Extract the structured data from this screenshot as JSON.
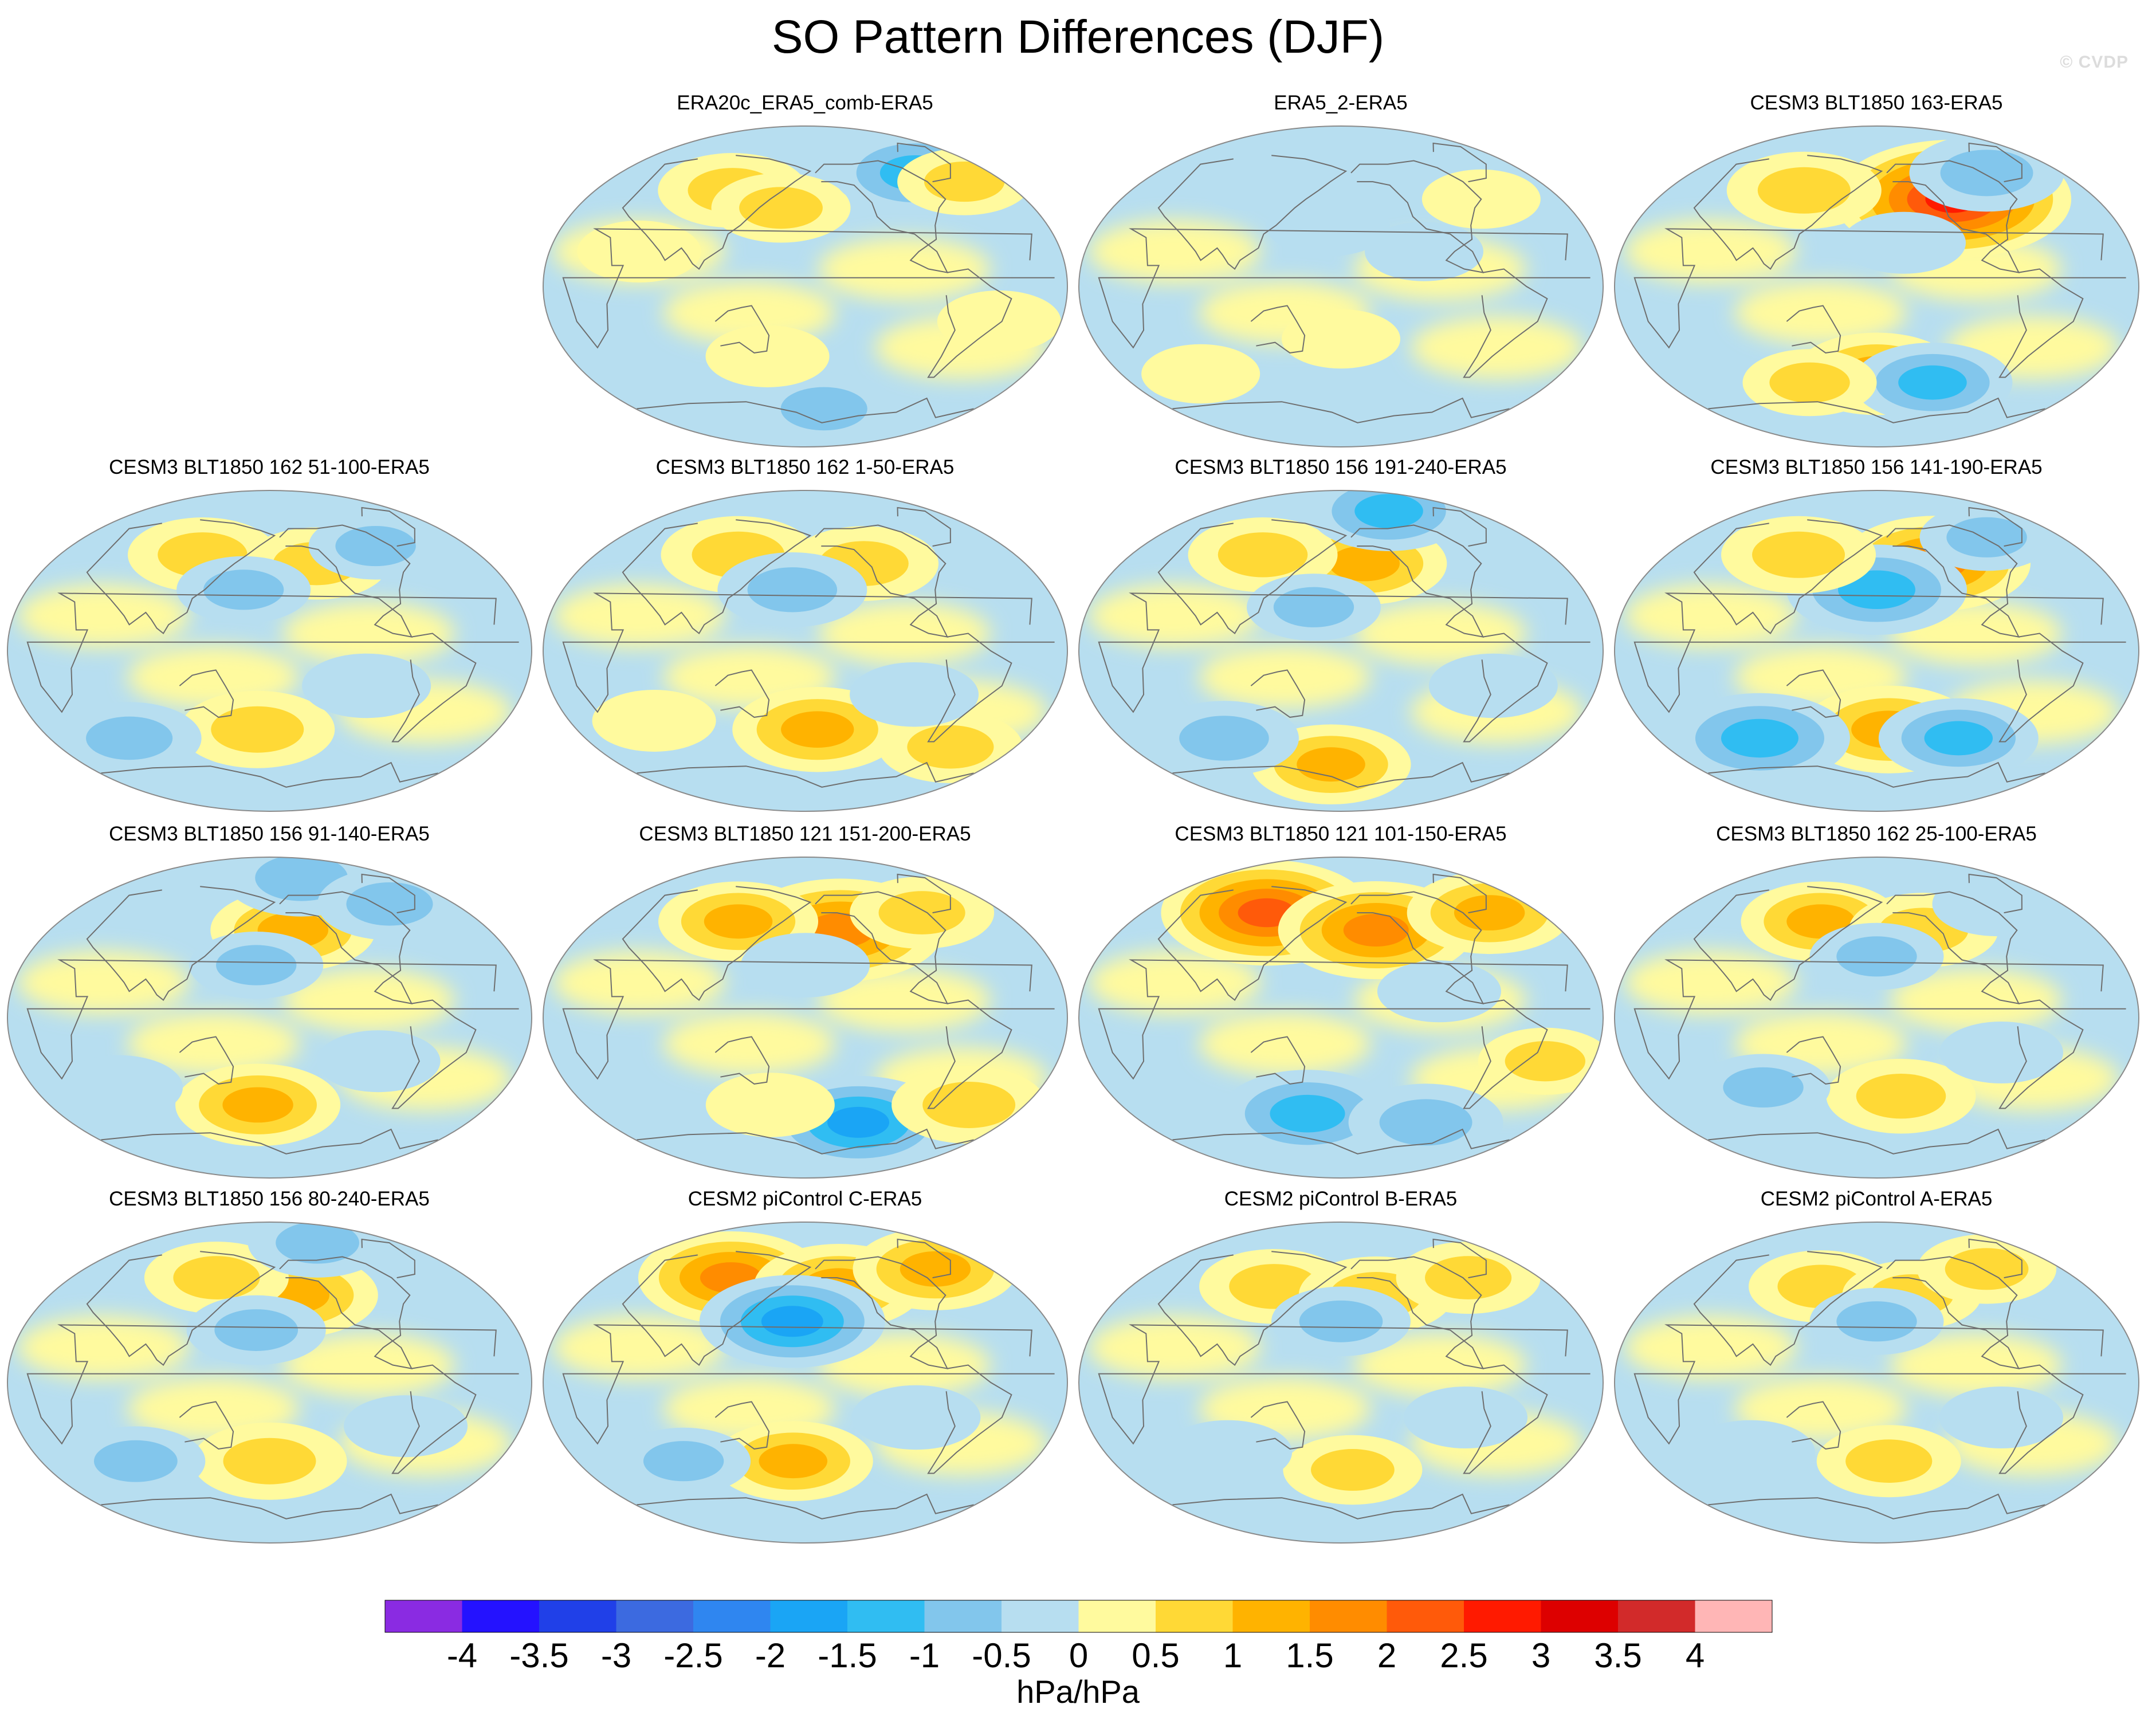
{
  "page_title": "SO Pattern Differences (DJF)",
  "watermark": "© CVDP",
  "chart_data": {
    "type": "heatmap",
    "title": "SO Pattern Differences (DJF)",
    "projection": "Robinson-style global map centered on the Pacific",
    "units": "hPa/hPa",
    "colorbar": {
      "levels": [
        -4,
        -3.5,
        -3,
        -2.5,
        -2,
        -1.5,
        -1,
        -0.5,
        0,
        0.5,
        1,
        1.5,
        2,
        2.5,
        3,
        3.5,
        4
      ],
      "tick_labels": [
        "-4",
        "-3.5",
        "-3",
        "-2.5",
        "-2",
        "-1.5",
        "-1",
        "-0.5",
        "0",
        "0.5",
        "1",
        "1.5",
        "2",
        "2.5",
        "3",
        "3.5",
        "4"
      ],
      "colors": [
        "#8a2be2",
        "#2412ff",
        "#2040e8",
        "#3c6ae0",
        "#2f86f0",
        "#1aa5f5",
        "#30bdf2",
        "#82c6ec",
        "#b7def0",
        "#fffa9e",
        "#ffd936",
        "#ffb300",
        "#ff8c00",
        "#ff5a0a",
        "#ff1a00",
        "#dd0000",
        "#d22a2a",
        "#ffb6b6"
      ]
    },
    "panels": [
      {
        "title": "ERA20c_ERA5_comb-ERA5",
        "features": [
          {
            "lon": 115,
            "lat": 55,
            "value": 0.9
          },
          {
            "lon": 160,
            "lat": 45,
            "value": 0.7
          },
          {
            "lon": 290,
            "lat": 65,
            "value": -1.2
          },
          {
            "lon": 330,
            "lat": 60,
            "value": 0.6
          },
          {
            "lon": 200,
            "lat": -70,
            "value": -0.8
          },
          {
            "lon": 60,
            "lat": 20,
            "value": 0.4
          },
          {
            "lon": 320,
            "lat": -20,
            "value": 0.4
          },
          {
            "lon": 150,
            "lat": -40,
            "value": 0.4
          }
        ]
      },
      {
        "title": "ERA5_2-ERA5",
        "features": [
          {
            "lon": 170,
            "lat": 35,
            "value": -0.4
          },
          {
            "lon": 240,
            "lat": 20,
            "value": -0.3
          },
          {
            "lon": 100,
            "lat": 60,
            "value": -0.3
          },
          {
            "lon": 180,
            "lat": -30,
            "value": 0.3
          },
          {
            "lon": 300,
            "lat": 50,
            "value": 0.3
          },
          {
            "lon": 60,
            "lat": -50,
            "value": 0.3
          }
        ]
      },
      {
        "title": "CESM3 BLT1850 163-ERA5",
        "features": [
          {
            "lon": 245,
            "lat": 50,
            "value": 2.6
          },
          {
            "lon": 115,
            "lat": 55,
            "value": 1.0
          },
          {
            "lon": 290,
            "lat": 65,
            "value": -1.0
          },
          {
            "lon": 180,
            "lat": -50,
            "value": 1.2
          },
          {
            "lon": 230,
            "lat": -55,
            "value": -1.1
          },
          {
            "lon": 120,
            "lat": -55,
            "value": 0.6
          },
          {
            "lon": 200,
            "lat": 25,
            "value": -0.4
          }
        ]
      },
      {
        "title": "CESM3 BLT1850 162 51-100-ERA5",
        "features": [
          {
            "lon": 120,
            "lat": 55,
            "value": 0.9
          },
          {
            "lon": 220,
            "lat": 50,
            "value": 0.8
          },
          {
            "lon": 280,
            "lat": 60,
            "value": -0.6
          },
          {
            "lon": 160,
            "lat": 35,
            "value": -0.6
          },
          {
            "lon": 170,
            "lat": -45,
            "value": 1.0
          },
          {
            "lon": 60,
            "lat": -50,
            "value": -0.8
          },
          {
            "lon": 250,
            "lat": -20,
            "value": -0.5
          }
        ]
      },
      {
        "title": "CESM3 BLT1850 162 1-50-ERA5",
        "features": [
          {
            "lon": 120,
            "lat": 55,
            "value": 1.0
          },
          {
            "lon": 230,
            "lat": 50,
            "value": 0.9
          },
          {
            "lon": 170,
            "lat": 35,
            "value": -0.9
          },
          {
            "lon": 190,
            "lat": -45,
            "value": 1.3
          },
          {
            "lon": 60,
            "lat": -40,
            "value": 0.4
          },
          {
            "lon": 310,
            "lat": -55,
            "value": 0.8
          },
          {
            "lon": 260,
            "lat": -25,
            "value": -0.5
          }
        ]
      },
      {
        "title": "CESM3 BLT1850 156 191-240-ERA5",
        "features": [
          {
            "lon": 200,
            "lat": 50,
            "value": 1.2
          },
          {
            "lon": 110,
            "lat": 55,
            "value": 0.9
          },
          {
            "lon": 240,
            "lat": 80,
            "value": -1.1
          },
          {
            "lon": 170,
            "lat": -65,
            "value": 1.1
          },
          {
            "lon": 80,
            "lat": -50,
            "value": -0.9
          },
          {
            "lon": 160,
            "lat": 25,
            "value": -0.6
          },
          {
            "lon": 290,
            "lat": -20,
            "value": -0.5
          }
        ]
      },
      {
        "title": "CESM3 BLT1850 156 141-190-ERA5",
        "features": [
          {
            "lon": 230,
            "lat": 50,
            "value": 1.7
          },
          {
            "lon": 180,
            "lat": 35,
            "value": -1.5
          },
          {
            "lon": 110,
            "lat": 55,
            "value": 1.0
          },
          {
            "lon": 190,
            "lat": -45,
            "value": 1.4
          },
          {
            "lon": 80,
            "lat": -50,
            "value": -1.5
          },
          {
            "lon": 250,
            "lat": -50,
            "value": -1.1
          },
          {
            "lon": 290,
            "lat": 65,
            "value": -0.6
          }
        ]
      },
      {
        "title": "CESM3 BLT1850 156 91-140-ERA5",
        "features": [
          {
            "lon": 200,
            "lat": 50,
            "value": 1.2
          },
          {
            "lon": 220,
            "lat": 80,
            "value": -1.0
          },
          {
            "lon": 300,
            "lat": 65,
            "value": -0.8
          },
          {
            "lon": 170,
            "lat": 30,
            "value": -0.6
          },
          {
            "lon": 170,
            "lat": -50,
            "value": 1.2
          },
          {
            "lon": 60,
            "lat": -40,
            "value": -0.5
          },
          {
            "lon": 260,
            "lat": -25,
            "value": -0.4
          }
        ]
      },
      {
        "title": "CESM3 BLT1850 121 151-200-ERA5",
        "features": [
          {
            "lon": 210,
            "lat": 50,
            "value": 2.0
          },
          {
            "lon": 120,
            "lat": 55,
            "value": 1.1
          },
          {
            "lon": 290,
            "lat": 60,
            "value": 0.8
          },
          {
            "lon": 230,
            "lat": -60,
            "value": -1.6
          },
          {
            "lon": 320,
            "lat": -50,
            "value": 1.0
          },
          {
            "lon": 150,
            "lat": -50,
            "value": 0.5
          },
          {
            "lon": 180,
            "lat": 30,
            "value": -0.5
          }
        ]
      },
      {
        "title": "CESM3 BLT1850 121 101-150-ERA5",
        "features": [
          {
            "lon": 110,
            "lat": 60,
            "value": 2.1
          },
          {
            "lon": 210,
            "lat": 50,
            "value": 1.8
          },
          {
            "lon": 320,
            "lat": 60,
            "value": 1.2
          },
          {
            "lon": 150,
            "lat": -55,
            "value": -1.4
          },
          {
            "lon": 260,
            "lat": -60,
            "value": -1.0
          },
          {
            "lon": 250,
            "lat": 15,
            "value": -0.4
          },
          {
            "lon": 330,
            "lat": -25,
            "value": 0.6
          }
        ]
      },
      {
        "title": "CESM3 BLT1850 162 25-100-ERA5",
        "features": [
          {
            "lon": 130,
            "lat": 55,
            "value": 1.1
          },
          {
            "lon": 220,
            "lat": 50,
            "value": 0.9
          },
          {
            "lon": 180,
            "lat": 35,
            "value": -0.6
          },
          {
            "lon": 200,
            "lat": -45,
            "value": 0.9
          },
          {
            "lon": 90,
            "lat": -40,
            "value": -0.6
          },
          {
            "lon": 300,
            "lat": 65,
            "value": -0.5
          },
          {
            "lon": 270,
            "lat": -20,
            "value": -0.4
          }
        ]
      },
      {
        "title": "CESM3 BLT1850 156 80-240-ERA5",
        "features": [
          {
            "lon": 200,
            "lat": 50,
            "value": 1.3
          },
          {
            "lon": 130,
            "lat": 60,
            "value": 0.8
          },
          {
            "lon": 240,
            "lat": 80,
            "value": -0.7
          },
          {
            "lon": 170,
            "lat": 30,
            "value": -0.7
          },
          {
            "lon": 180,
            "lat": -45,
            "value": 1.0
          },
          {
            "lon": 70,
            "lat": -45,
            "value": -0.7
          },
          {
            "lon": 280,
            "lat": -25,
            "value": -0.4
          }
        ]
      },
      {
        "title": "CESM2 piControl C-ERA5",
        "features": [
          {
            "lon": 110,
            "lat": 60,
            "value": 1.6
          },
          {
            "lon": 210,
            "lat": 55,
            "value": 1.3
          },
          {
            "lon": 310,
            "lat": 65,
            "value": 1.2
          },
          {
            "lon": 170,
            "lat": 35,
            "value": -1.6
          },
          {
            "lon": 170,
            "lat": -45,
            "value": 1.1
          },
          {
            "lon": 80,
            "lat": -45,
            "value": -0.6
          },
          {
            "lon": 260,
            "lat": -20,
            "value": -0.5
          }
        ]
      },
      {
        "title": "CESM2 piControl B-ERA5",
        "features": [
          {
            "lon": 120,
            "lat": 55,
            "value": 0.9
          },
          {
            "lon": 210,
            "lat": 50,
            "value": 1.0
          },
          {
            "lon": 300,
            "lat": 60,
            "value": 0.8
          },
          {
            "lon": 180,
            "lat": 35,
            "value": -0.7
          },
          {
            "lon": 190,
            "lat": -50,
            "value": 0.7
          },
          {
            "lon": 90,
            "lat": -40,
            "value": -0.5
          },
          {
            "lon": 270,
            "lat": -20,
            "value": -0.4
          }
        ]
      },
      {
        "title": "CESM2 piControl A-ERA5",
        "features": [
          {
            "lon": 130,
            "lat": 55,
            "value": 0.8
          },
          {
            "lon": 210,
            "lat": 50,
            "value": 0.7
          },
          {
            "lon": 290,
            "lat": 65,
            "value": 0.7
          },
          {
            "lon": 180,
            "lat": 35,
            "value": -0.6
          },
          {
            "lon": 190,
            "lat": -45,
            "value": 0.8
          },
          {
            "lon": 80,
            "lat": -40,
            "value": -0.5
          },
          {
            "lon": 270,
            "lat": -20,
            "value": -0.4
          }
        ]
      }
    ]
  }
}
